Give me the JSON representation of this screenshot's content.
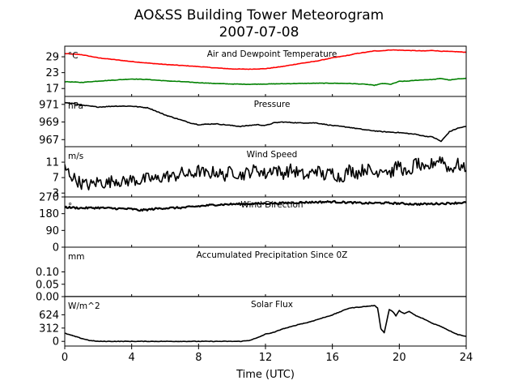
{
  "figure": {
    "title_line1": "AO&SS Building Tower Meteorogram",
    "title_line2": "2007-07-08",
    "xlabel": "Time (UTC)"
  },
  "chart_data": [
    {
      "id": "temp",
      "type": "line",
      "title": "Air and Dewpoint Temperature",
      "unit": "°C",
      "xlim": [
        0,
        24
      ],
      "ylim": [
        14,
        33
      ],
      "yticks": [
        "17",
        "23",
        "29"
      ],
      "ytick_values": [
        17,
        23,
        29
      ],
      "series": [
        {
          "color": "#ff0000",
          "x": [
            0,
            1,
            2,
            3,
            4,
            5,
            6,
            7,
            8,
            9,
            10,
            11,
            12,
            13,
            14,
            15,
            16,
            17,
            17.5,
            18,
            18.5,
            19,
            19.5,
            20,
            20.5,
            21,
            21.5,
            22,
            22.5,
            23,
            23.5,
            24
          ],
          "y": [
            30.2,
            29.8,
            28.6,
            27.9,
            27.2,
            26.6,
            26.1,
            25.7,
            25.3,
            24.8,
            24.4,
            24.3,
            24.5,
            25.3,
            26.4,
            27.3,
            28.6,
            29.6,
            30.3,
            30.7,
            31.2,
            31.3,
            31.6,
            31.5,
            31.4,
            31.3,
            31.2,
            31.4,
            31.1,
            31.0,
            30.9,
            30.7
          ]
        },
        {
          "color": "#008000",
          "x": [
            0,
            1,
            2,
            3,
            4,
            5,
            6,
            7,
            8,
            9,
            10,
            11,
            12,
            13,
            14,
            15,
            16,
            17,
            18,
            18.5,
            19,
            19.5,
            20,
            20.5,
            21,
            21.5,
            22,
            22.5,
            23,
            23.5,
            24
          ],
          "y": [
            19.6,
            19.3,
            19.8,
            20.2,
            20.6,
            20.4,
            19.9,
            19.6,
            19.2,
            18.9,
            18.7,
            18.6,
            18.7,
            18.8,
            18.9,
            19.0,
            19.0,
            18.9,
            18.6,
            18.2,
            18.9,
            18.6,
            19.7,
            19.8,
            20.1,
            20.3,
            20.4,
            20.8,
            20.2,
            20.6,
            20.9
          ]
        }
      ]
    },
    {
      "id": "pressure",
      "type": "line",
      "title": "Pressure",
      "unit": "hPa",
      "xlim": [
        0,
        24
      ],
      "ylim": [
        966.2,
        971.9
      ],
      "yticks": [
        "967",
        "969",
        "971"
      ],
      "ytick_values": [
        967,
        969,
        971
      ],
      "series": [
        {
          "color": "#000000",
          "x": [
            0,
            0.5,
            1,
            1.5,
            2,
            3,
            4,
            5,
            5.5,
            6,
            6.5,
            7,
            7.5,
            8,
            9,
            10,
            10.5,
            11,
            11.5,
            12,
            12.5,
            13,
            14,
            15,
            16,
            17,
            18,
            19,
            20,
            20.5,
            21,
            21.5,
            22,
            22.5,
            23,
            23.5,
            24
          ],
          "y": [
            971.2,
            971.1,
            970.9,
            970.8,
            970.7,
            970.8,
            970.8,
            970.6,
            970.2,
            969.8,
            969.5,
            969.2,
            968.9,
            968.7,
            968.8,
            968.6,
            968.5,
            968.6,
            968.7,
            968.6,
            968.9,
            969.0,
            968.9,
            968.9,
            968.6,
            968.4,
            968.1,
            967.9,
            967.8,
            967.7,
            967.6,
            967.4,
            967.3,
            966.8,
            967.9,
            968.3,
            968.5
          ]
        }
      ]
    },
    {
      "id": "wind",
      "type": "line",
      "title": "Wind Speed",
      "unit": "m/s",
      "xlim": [
        0,
        24
      ],
      "ylim": [
        2,
        15
      ],
      "yticks": [
        "3",
        "7",
        "11"
      ],
      "ytick_values": [
        3,
        7,
        11
      ],
      "series": [
        {
          "color": "#000000",
          "x": [
            0,
            0.5,
            1,
            1.5,
            2,
            2.5,
            3,
            3.5,
            4,
            4.5,
            5,
            5.5,
            6,
            6.5,
            7,
            7.5,
            8,
            8.5,
            9,
            9.5,
            10,
            10.5,
            11,
            11.5,
            12,
            12.5,
            13,
            13.5,
            14,
            14.5,
            15,
            15.5,
            16,
            16.5,
            17,
            17.5,
            18,
            18.5,
            19,
            19.5,
            20,
            20.5,
            21,
            21.5,
            22,
            22.5,
            23,
            23.5,
            24
          ],
          "y": [
            9.5,
            7.0,
            5.5,
            5.0,
            6.0,
            5.5,
            6.5,
            5.8,
            6.5,
            6.2,
            6.8,
            6.5,
            7.5,
            7.2,
            8.2,
            7.6,
            8.8,
            7.8,
            8.6,
            7.4,
            8.8,
            7.6,
            8.4,
            9.2,
            7.8,
            9.5,
            8.0,
            9.0,
            8.2,
            7.2,
            9.2,
            7.5,
            8.4,
            6.8,
            9.0,
            8.2,
            9.5,
            8.0,
            9.6,
            8.2,
            10.5,
            7.2,
            11.2,
            8.5,
            10.8,
            12.0,
            9.0,
            10.5,
            8.8
          ]
        }
      ]
    },
    {
      "id": "direction",
      "type": "line",
      "title": "Wind Direction",
      "unit": "°",
      "xlim": [
        0,
        24
      ],
      "ylim": [
        0,
        270
      ],
      "yticks": [
        "0",
        "90",
        "180",
        "270"
      ],
      "ytick_values": [
        0,
        90,
        180,
        270
      ],
      "series": [
        {
          "color": "#000000",
          "x": [
            0,
            1,
            2,
            3,
            4,
            4.5,
            5,
            5.5,
            6,
            7,
            8,
            9,
            10,
            11,
            12,
            13,
            14,
            15,
            16,
            17,
            18,
            19,
            20,
            21,
            22,
            23,
            24
          ],
          "y": [
            215,
            210,
            212,
            208,
            205,
            198,
            202,
            207,
            210,
            212,
            220,
            228,
            231,
            233,
            235,
            237,
            240,
            242,
            244,
            240,
            236,
            238,
            235,
            231,
            233,
            236,
            240
          ]
        }
      ]
    },
    {
      "id": "precip",
      "type": "line",
      "title": "Accumulated Precipitation Since 0Z",
      "unit": "mm",
      "xlim": [
        0,
        24
      ],
      "ylim": [
        0,
        0.2
      ],
      "yticks": [
        "0.00",
        "0.05",
        "0.10"
      ],
      "ytick_values": [
        0.0,
        0.05,
        0.1
      ],
      "series": [
        {
          "color": "#000000",
          "x": [
            0,
            24
          ],
          "y": [
            0,
            0
          ]
        }
      ]
    },
    {
      "id": "solar",
      "type": "line",
      "title": "Solar Flux",
      "unit": "W/m^2",
      "xlim": [
        0,
        24
      ],
      "ylim": [
        -110,
        1050
      ],
      "yticks": [
        "0",
        "312",
        "624"
      ],
      "ytick_values": [
        0,
        312,
        624
      ],
      "series": [
        {
          "color": "#000000",
          "x": [
            0,
            0.5,
            1,
            1.5,
            2,
            3,
            4,
            5,
            6,
            7,
            8,
            9,
            10,
            10.5,
            11,
            11.5,
            12,
            12.5,
            13,
            13.5,
            14,
            14.5,
            15,
            15.5,
            16,
            16.5,
            17,
            17.5,
            18,
            18.5,
            18.7,
            18.9,
            19.1,
            19.4,
            19.6,
            19.8,
            20,
            20.3,
            20.6,
            21,
            21.5,
            22,
            22.5,
            23,
            23.5,
            24
          ],
          "y": [
            190,
            130,
            70,
            20,
            0,
            0,
            0,
            0,
            0,
            0,
            0,
            0,
            0,
            0,
            20,
            80,
            170,
            210,
            290,
            340,
            400,
            440,
            500,
            560,
            620,
            700,
            780,
            800,
            820,
            840,
            790,
            300,
            200,
            750,
            700,
            600,
            720,
            650,
            700,
            600,
            520,
            420,
            350,
            250,
            160,
            120
          ]
        }
      ]
    }
  ]
}
